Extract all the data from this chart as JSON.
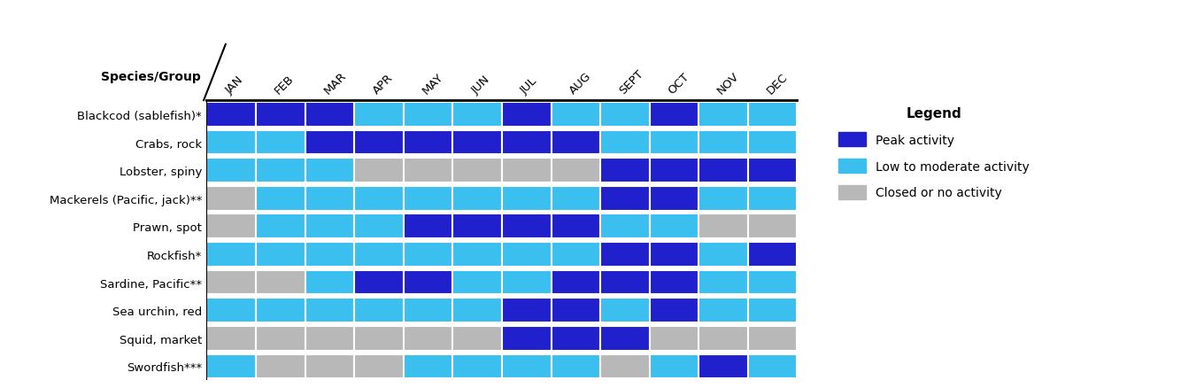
{
  "months": [
    "JAN",
    "FEB",
    "MAR",
    "APR",
    "MAY",
    "JUN",
    "JUL",
    "AUG",
    "SEPT",
    "OCT",
    "NOV",
    "DEC"
  ],
  "species": [
    "Blackcod (sablefish)*",
    "Crabs, rock",
    "Lobster, spiny",
    "Mackerels (Pacific, jack)**",
    "Prawn, spot",
    "Rockfish*",
    "Sardine, Pacific**",
    "Sea urchin, red",
    "Squid, market",
    "Swordfish***"
  ],
  "activity": [
    [
      "P",
      "P",
      "P",
      "L",
      "L",
      "L",
      "P",
      "L",
      "L",
      "P",
      "L",
      "L"
    ],
    [
      "L",
      "L",
      "P",
      "P",
      "P",
      "P",
      "P",
      "P",
      "L",
      "L",
      "L",
      "L"
    ],
    [
      "L",
      "L",
      "L",
      "C",
      "C",
      "C",
      "C",
      "C",
      "P",
      "P",
      "P",
      "P"
    ],
    [
      "C",
      "L",
      "L",
      "L",
      "L",
      "L",
      "L",
      "L",
      "P",
      "P",
      "L",
      "L"
    ],
    [
      "C",
      "L",
      "L",
      "L",
      "P",
      "P",
      "P",
      "P",
      "L",
      "L",
      "C",
      "C"
    ],
    [
      "L",
      "L",
      "L",
      "L",
      "L",
      "L",
      "L",
      "L",
      "P",
      "P",
      "L",
      "P"
    ],
    [
      "C",
      "C",
      "L",
      "P",
      "P",
      "L",
      "L",
      "P",
      "P",
      "P",
      "L",
      "L"
    ],
    [
      "L",
      "L",
      "L",
      "L",
      "L",
      "L",
      "P",
      "P",
      "L",
      "P",
      "L",
      "L"
    ],
    [
      "C",
      "C",
      "C",
      "C",
      "C",
      "C",
      "P",
      "P",
      "P",
      "C",
      "C",
      "C"
    ],
    [
      "L",
      "C",
      "C",
      "C",
      "L",
      "L",
      "L",
      "L",
      "C",
      "L",
      "P",
      "L"
    ]
  ],
  "colors": {
    "P": "#2020cc",
    "L": "#3bbfef",
    "C": "#b8b8b8"
  },
  "legend_title": "Legend",
  "legend_labels": [
    "Peak activity",
    "Low to moderate activity",
    "Closed or no activity"
  ],
  "legend_colors": [
    "#2020cc",
    "#3bbfef",
    "#b8b8b8"
  ],
  "header_label": "Species/Group",
  "figsize": [
    13.34,
    4.39
  ],
  "dpi": 100
}
